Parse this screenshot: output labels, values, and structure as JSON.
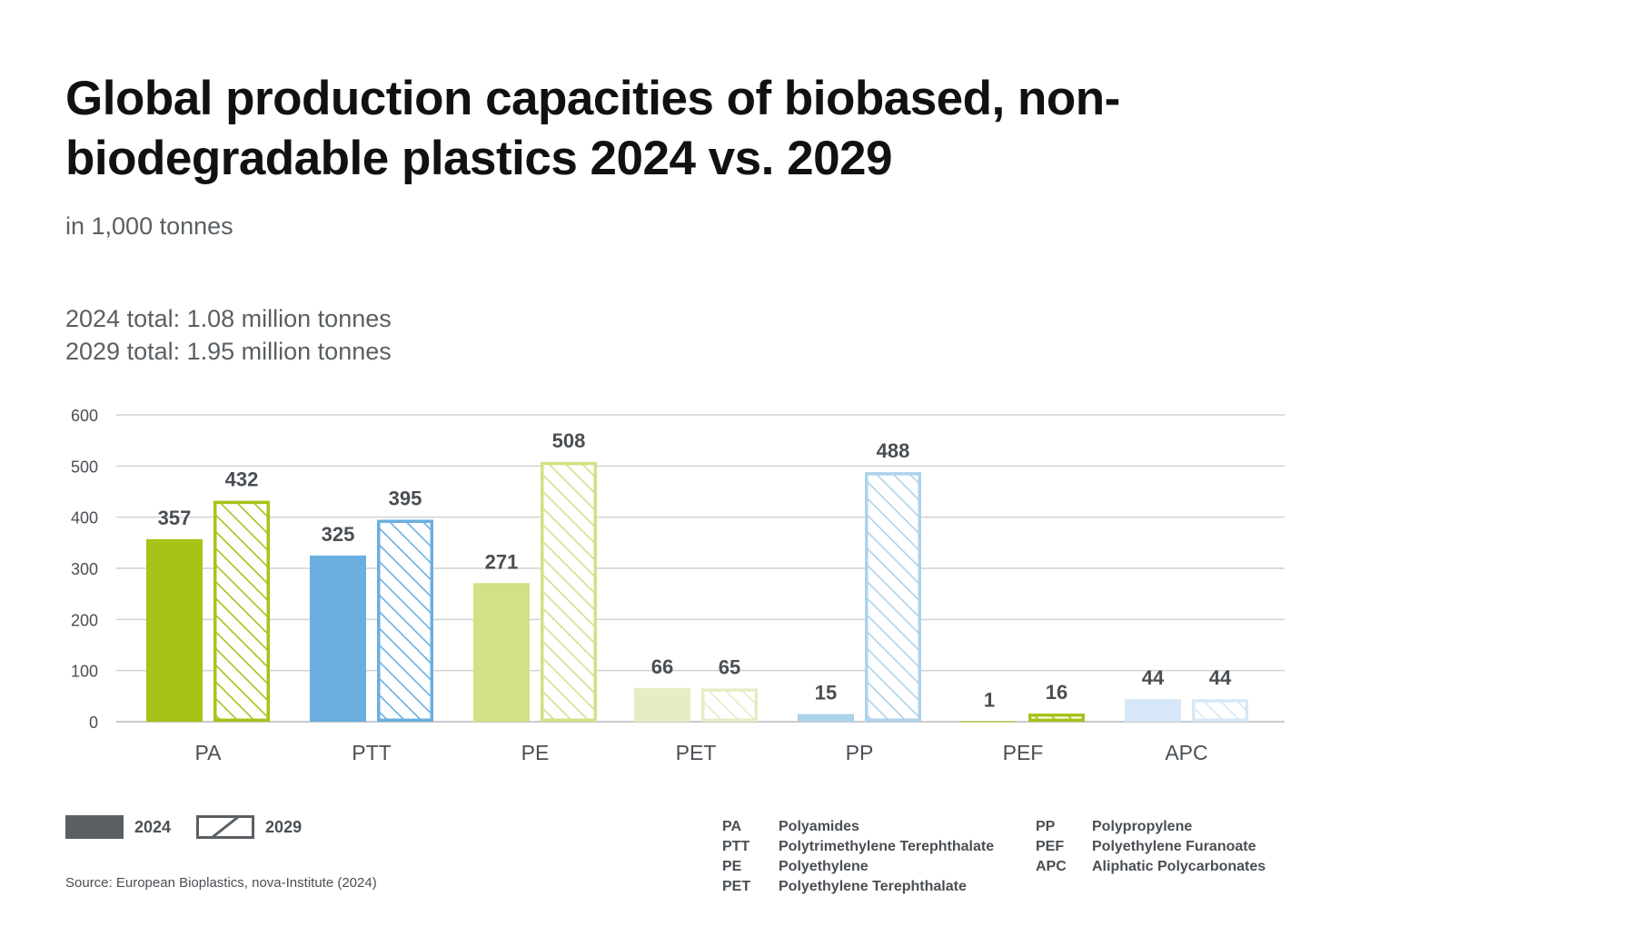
{
  "header": {
    "title": "Global production capacities of biobased, non-biodegradable plastics 2024 vs. 2029",
    "subtitle": "in 1,000 tonnes",
    "total_2024": "2024 total: 1.08 million tonnes",
    "total_2029": "2029 total: 1.95 million tonnes"
  },
  "chart_data": {
    "type": "bar",
    "categories": [
      "PA",
      "PTT",
      "PE",
      "PET",
      "PP",
      "PEF",
      "APC"
    ],
    "series": [
      {
        "name": "2024",
        "values": [
          357,
          325,
          271,
          66,
          15,
          1,
          44
        ]
      },
      {
        "name": "2029",
        "values": [
          432,
          395,
          508,
          65,
          488,
          16,
          44
        ]
      }
    ],
    "ylim": [
      0,
      600
    ],
    "yticks": [
      0,
      100,
      200,
      300,
      400,
      500,
      600
    ],
    "grid": true,
    "legend_position": "bottom-left",
    "colors": [
      "#a7c318",
      "#6aafe0",
      "#d4e085",
      "#e5edc4",
      "#add2eb",
      "#a7c318",
      "#d6e8f7"
    ],
    "series_style": {
      "2024": "solid",
      "2029": "hatched-outline"
    }
  },
  "legend": {
    "label_2024": "2024",
    "label_2029": "2029",
    "swatch_color": "#5a5f63"
  },
  "abbreviations": {
    "left": [
      {
        "code": "PA",
        "name": "Polyamides"
      },
      {
        "code": "PTT",
        "name": "Polytrimethylene Terephthalate"
      },
      {
        "code": "PE",
        "name": "Polyethylene"
      },
      {
        "code": "PET",
        "name": "Polyethylene Terephthalate"
      }
    ],
    "right": [
      {
        "code": "PP",
        "name": "Polypropylene"
      },
      {
        "code": "PEF",
        "name": "Polyethylene Furanoate"
      },
      {
        "code": "APC",
        "name": "Aliphatic Polycarbonates"
      }
    ]
  },
  "source": "Source: European Bioplastics, nova-Institute (2024)"
}
